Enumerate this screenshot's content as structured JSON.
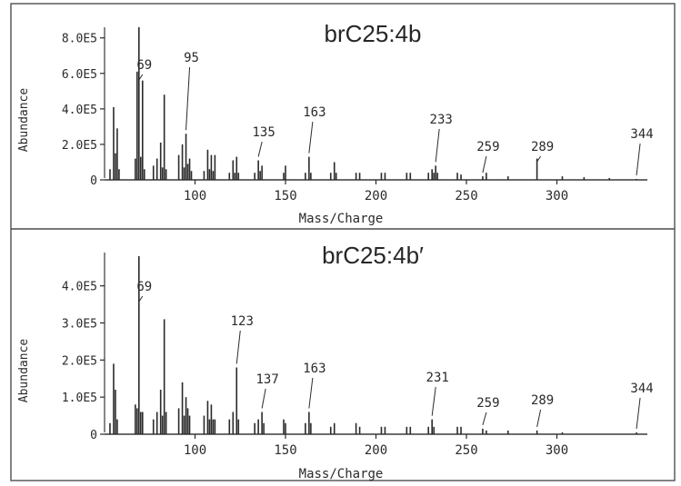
{
  "figure": {
    "background": "#ffffff",
    "ink_color": "#2a2a2a",
    "frame_color": "#5c5c5c"
  },
  "chart_data": [
    {
      "type": "bar",
      "title": "brC25:4b",
      "xlabel": "Mass/Charge",
      "ylabel": "Abundance",
      "xlim": [
        50,
        350
      ],
      "ylim": [
        0,
        860000
      ],
      "xticks": [
        100,
        150,
        200,
        250,
        300
      ],
      "xtick_labels": [
        "100",
        "150",
        "200",
        "250",
        "300"
      ],
      "yticks": [
        0,
        200000,
        400000,
        600000,
        800000
      ],
      "ytick_labels": [
        "0",
        "2.0E5",
        "4.0E5",
        "6.0E5",
        "8.0E5"
      ],
      "grid": false,
      "x": [
        53,
        55,
        56,
        57,
        58,
        67,
        68,
        69,
        70,
        71,
        72,
        77,
        79,
        81,
        82,
        83,
        84,
        91,
        93,
        94,
        95,
        96,
        97,
        98,
        105,
        107,
        108,
        109,
        110,
        111,
        119,
        121,
        122,
        123,
        124,
        133,
        135,
        136,
        137,
        149,
        150,
        161,
        163,
        164,
        175,
        177,
        178,
        189,
        191,
        203,
        205,
        217,
        219,
        229,
        231,
        232,
        233,
        234,
        245,
        247,
        259,
        261,
        273,
        289,
        303,
        315,
        329,
        344
      ],
      "y": [
        60000,
        410000,
        150000,
        290000,
        60000,
        120000,
        610000,
        860000,
        130000,
        560000,
        60000,
        80000,
        120000,
        210000,
        70000,
        480000,
        60000,
        140000,
        200000,
        70000,
        260000,
        90000,
        120000,
        50000,
        50000,
        170000,
        60000,
        140000,
        50000,
        140000,
        40000,
        110000,
        40000,
        130000,
        40000,
        40000,
        110000,
        50000,
        80000,
        40000,
        80000,
        40000,
        130000,
        40000,
        40000,
        100000,
        40000,
        40000,
        40000,
        40000,
        40000,
        40000,
        40000,
        40000,
        60000,
        40000,
        80000,
        40000,
        40000,
        30000,
        20000,
        40000,
        20000,
        120000,
        20000,
        15000,
        10000,
        5000
      ],
      "peak_labels": [
        {
          "x": 69,
          "text": "69"
        },
        {
          "x": 95,
          "text": "95"
        },
        {
          "x": 135,
          "text": "135"
        },
        {
          "x": 163,
          "text": "163"
        },
        {
          "x": 233,
          "text": "233"
        },
        {
          "x": 259,
          "text": "259"
        },
        {
          "x": 289,
          "text": "289"
        },
        {
          "x": 344,
          "text": "344"
        }
      ]
    },
    {
      "type": "bar",
      "title": "brC25:4b′",
      "xlabel": "Mass/Charge",
      "ylabel": "Abundance",
      "xlim": [
        50,
        350
      ],
      "ylim": [
        0,
        480000
      ],
      "xticks": [
        100,
        150,
        200,
        250,
        300
      ],
      "xtick_labels": [
        "100",
        "150",
        "200",
        "250",
        "300"
      ],
      "yticks": [
        0,
        100000,
        200000,
        300000,
        400000
      ],
      "ytick_labels": [
        "0",
        "1.0E5",
        "2.0E5",
        "3.0E5",
        "4.0E5"
      ],
      "grid": false,
      "x": [
        53,
        55,
        56,
        57,
        67,
        68,
        69,
        70,
        71,
        77,
        79,
        81,
        82,
        83,
        84,
        91,
        93,
        94,
        95,
        96,
        97,
        105,
        107,
        108,
        109,
        110,
        111,
        119,
        121,
        123,
        124,
        133,
        135,
        137,
        138,
        149,
        150,
        161,
        163,
        164,
        175,
        177,
        189,
        191,
        203,
        205,
        217,
        219,
        229,
        231,
        232,
        245,
        247,
        259,
        261,
        273,
        289,
        303,
        344
      ],
      "y": [
        30000,
        190000,
        120000,
        40000,
        80000,
        70000,
        480000,
        60000,
        60000,
        40000,
        60000,
        120000,
        50000,
        310000,
        60000,
        70000,
        140000,
        50000,
        100000,
        70000,
        50000,
        50000,
        90000,
        40000,
        80000,
        40000,
        40000,
        40000,
        60000,
        180000,
        40000,
        30000,
        40000,
        60000,
        30000,
        40000,
        30000,
        30000,
        60000,
        30000,
        20000,
        30000,
        30000,
        20000,
        20000,
        20000,
        20000,
        20000,
        20000,
        40000,
        20000,
        20000,
        20000,
        15000,
        10000,
        10000,
        10000,
        5000,
        5000
      ],
      "peak_labels": [
        {
          "x": 69,
          "text": "69"
        },
        {
          "x": 123,
          "text": "123"
        },
        {
          "x": 137,
          "text": "137"
        },
        {
          "x": 163,
          "text": "163"
        },
        {
          "x": 231,
          "text": "231"
        },
        {
          "x": 259,
          "text": "259"
        },
        {
          "x": 289,
          "text": "289"
        },
        {
          "x": 344,
          "text": "344"
        }
      ]
    }
  ]
}
